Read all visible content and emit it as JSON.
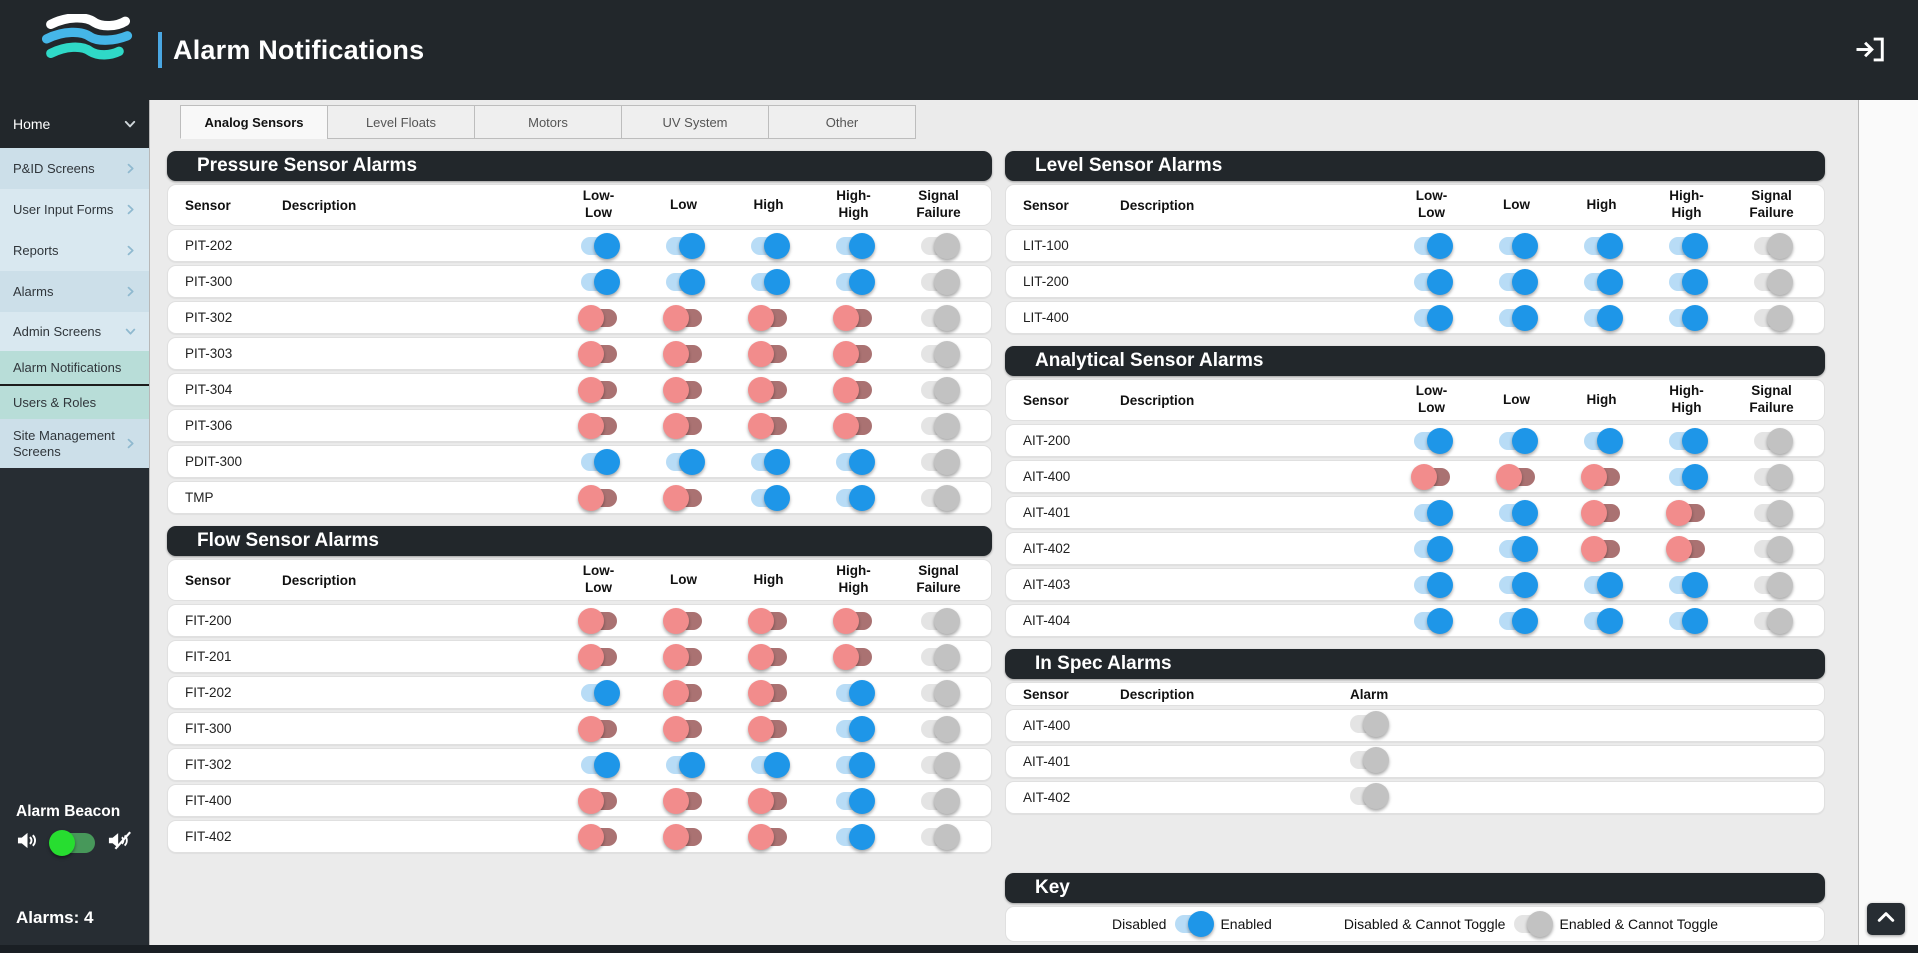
{
  "header": {
    "title": "Alarm Notifications"
  },
  "sidebar": {
    "home": {
      "label": "Home",
      "chevron": "down"
    },
    "items": [
      {
        "label": "P&ID Screens",
        "chevron": "right",
        "tone": "blue-a",
        "h": "h41"
      },
      {
        "label": "User Input Forms",
        "chevron": "right",
        "tone": "blue-b",
        "h": "h41"
      },
      {
        "label": "Reports",
        "chevron": "right",
        "tone": "blue-b",
        "h": "h41"
      },
      {
        "label": "Alarms",
        "chevron": "right",
        "tone": "blue-a",
        "h": "h41"
      },
      {
        "label": "Admin Screens",
        "chevron": "down",
        "tone": "blue-b",
        "h": "h39"
      },
      {
        "label": "Alarm Notifications",
        "chevron": "",
        "tone": "teal",
        "h": "h33",
        "selected": true
      },
      {
        "label": "Users & Roles",
        "chevron": "",
        "tone": "teal",
        "h": "h33"
      },
      {
        "label": "Site Management Screens",
        "chevron": "right",
        "tone": "blue-a",
        "h": "h49"
      }
    ],
    "alarm_beacon": {
      "label": "Alarm Beacon",
      "toggle_state": "on"
    },
    "alarms_label": "Alarms: 4",
    "alarm_count": 4
  },
  "tabs": [
    {
      "label": "Analog Sensors",
      "active": true
    },
    {
      "label": "Level Floats",
      "active": false
    },
    {
      "label": "Motors",
      "active": false
    },
    {
      "label": "UV System",
      "active": false
    },
    {
      "label": "Other",
      "active": false
    }
  ],
  "tables": {
    "columns": [
      "Sensor",
      "Description",
      "Low-Low",
      "Low",
      "High",
      "High-High",
      "Signal Failure"
    ],
    "pressure": {
      "title": "Pressure Sensor Alarms",
      "rows": [
        {
          "sensor": "PIT-202",
          "description": "",
          "states": [
            "enabled",
            "enabled",
            "enabled",
            "enabled",
            "enabled-locked"
          ]
        },
        {
          "sensor": "PIT-300",
          "description": "",
          "states": [
            "enabled",
            "enabled",
            "enabled",
            "enabled",
            "enabled-locked"
          ]
        },
        {
          "sensor": "PIT-302",
          "description": "",
          "states": [
            "disabled-locked",
            "disabled-locked",
            "disabled-locked",
            "disabled-locked",
            "enabled-locked"
          ]
        },
        {
          "sensor": "PIT-303",
          "description": "",
          "states": [
            "disabled-locked",
            "disabled-locked",
            "disabled-locked",
            "disabled-locked",
            "enabled-locked"
          ]
        },
        {
          "sensor": "PIT-304",
          "description": "",
          "states": [
            "disabled-locked",
            "disabled-locked",
            "disabled-locked",
            "disabled-locked",
            "enabled-locked"
          ]
        },
        {
          "sensor": "PIT-306",
          "description": "",
          "states": [
            "disabled-locked",
            "disabled-locked",
            "disabled-locked",
            "disabled-locked",
            "enabled-locked"
          ]
        },
        {
          "sensor": "PDIT-300",
          "description": "",
          "states": [
            "enabled",
            "enabled",
            "enabled",
            "enabled",
            "enabled-locked"
          ]
        },
        {
          "sensor": "TMP",
          "description": "",
          "states": [
            "disabled-locked",
            "disabled-locked",
            "enabled",
            "enabled",
            "enabled-locked"
          ]
        }
      ]
    },
    "flow": {
      "title": "Flow Sensor Alarms",
      "rows": [
        {
          "sensor": "FIT-200",
          "description": "",
          "states": [
            "disabled-locked",
            "disabled-locked",
            "disabled-locked",
            "disabled-locked",
            "enabled-locked"
          ]
        },
        {
          "sensor": "FIT-201",
          "description": "",
          "states": [
            "disabled-locked",
            "disabled-locked",
            "disabled-locked",
            "disabled-locked",
            "enabled-locked"
          ]
        },
        {
          "sensor": "FIT-202",
          "description": "",
          "states": [
            "enabled",
            "disabled-locked",
            "disabled-locked",
            "enabled",
            "enabled-locked"
          ]
        },
        {
          "sensor": "FIT-300",
          "description": "",
          "states": [
            "disabled-locked",
            "disabled-locked",
            "disabled-locked",
            "enabled",
            "enabled-locked"
          ]
        },
        {
          "sensor": "FIT-302",
          "description": "",
          "states": [
            "enabled",
            "enabled",
            "enabled",
            "enabled",
            "enabled-locked"
          ]
        },
        {
          "sensor": "FIT-400",
          "description": "",
          "states": [
            "disabled-locked",
            "disabled-locked",
            "disabled-locked",
            "enabled",
            "enabled-locked"
          ]
        },
        {
          "sensor": "FIT-402",
          "description": "",
          "states": [
            "disabled-locked",
            "disabled-locked",
            "disabled-locked",
            "enabled",
            "enabled-locked"
          ]
        }
      ]
    },
    "level": {
      "title": "Level Sensor Alarms",
      "rows": [
        {
          "sensor": "LIT-100",
          "description": "",
          "states": [
            "enabled",
            "enabled",
            "enabled",
            "enabled",
            "enabled-locked"
          ]
        },
        {
          "sensor": "LIT-200",
          "description": "",
          "states": [
            "enabled",
            "enabled",
            "enabled",
            "enabled",
            "enabled-locked"
          ]
        },
        {
          "sensor": "LIT-400",
          "description": "",
          "states": [
            "enabled",
            "enabled",
            "enabled",
            "enabled",
            "enabled-locked"
          ]
        }
      ]
    },
    "analytical": {
      "title": "Analytical Sensor Alarms",
      "rows": [
        {
          "sensor": "AIT-200",
          "description": "",
          "states": [
            "enabled",
            "enabled",
            "enabled",
            "enabled",
            "enabled-locked"
          ]
        },
        {
          "sensor": "AIT-400",
          "description": "",
          "states": [
            "disabled-locked",
            "disabled-locked",
            "disabled-locked",
            "enabled",
            "enabled-locked"
          ]
        },
        {
          "sensor": "AIT-401",
          "description": "",
          "states": [
            "enabled",
            "enabled",
            "disabled-locked",
            "disabled-locked",
            "enabled-locked"
          ]
        },
        {
          "sensor": "AIT-402",
          "description": "",
          "states": [
            "enabled",
            "enabled",
            "disabled-locked",
            "disabled-locked",
            "enabled-locked"
          ]
        },
        {
          "sensor": "AIT-403",
          "description": "",
          "states": [
            "enabled",
            "enabled",
            "enabled",
            "enabled",
            "enabled-locked"
          ]
        },
        {
          "sensor": "AIT-404",
          "description": "",
          "states": [
            "enabled",
            "enabled",
            "enabled",
            "enabled",
            "enabled-locked"
          ]
        }
      ]
    },
    "in_spec": {
      "title": "In Spec Alarms",
      "columns": [
        "Sensor",
        "Description",
        "Alarm"
      ],
      "rows": [
        {
          "sensor": "AIT-400",
          "description": "",
          "alarm": "enabled-locked"
        },
        {
          "sensor": "AIT-401",
          "description": "",
          "alarm": "enabled-locked"
        },
        {
          "sensor": "AIT-402",
          "description": "",
          "alarm": "enabled-locked"
        }
      ]
    }
  },
  "key": {
    "title": "Key",
    "legend": [
      {
        "left": "Disabled",
        "toggle": "enabled",
        "right": "Enabled"
      },
      {
        "left": "Disabled & Cannot Toggle",
        "toggle": "enabled-locked",
        "right": "Enabled & Cannot Toggle"
      }
    ]
  },
  "colors": {
    "dark": "#22272b",
    "accent_blue": "#1e96e8",
    "toggle_track_blue": "#b8dcf6",
    "toggle_red": "#f28c8c",
    "toggle_track_red": "#aa7272",
    "toggle_gray": "#c2c2c2",
    "toggle_track_gray": "#e4e4e4",
    "beacon_green": "#27dd30",
    "sidebar_teal": "#b8ddd8",
    "sidebar_blue_a": "#ccdfe9",
    "sidebar_blue_b": "#d9e8f0"
  }
}
